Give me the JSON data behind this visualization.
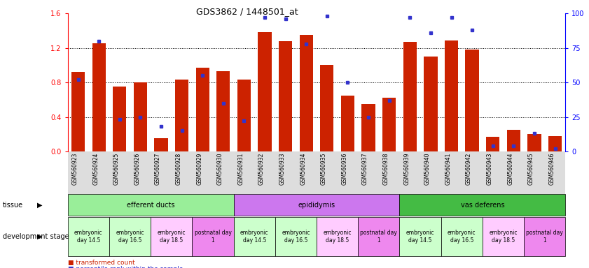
{
  "title": "GDS3862 / 1448501_at",
  "samples": [
    "GSM560923",
    "GSM560924",
    "GSM560925",
    "GSM560926",
    "GSM560927",
    "GSM560928",
    "GSM560929",
    "GSM560930",
    "GSM560931",
    "GSM560932",
    "GSM560933",
    "GSM560934",
    "GSM560935",
    "GSM560936",
    "GSM560937",
    "GSM560938",
    "GSM560939",
    "GSM560940",
    "GSM560941",
    "GSM560942",
    "GSM560943",
    "GSM560944",
    "GSM560945",
    "GSM560946"
  ],
  "transformed_count": [
    0.92,
    1.25,
    0.75,
    0.8,
    0.15,
    0.83,
    0.97,
    0.93,
    0.83,
    1.38,
    1.28,
    1.35,
    1.0,
    0.65,
    0.55,
    0.62,
    1.27,
    1.1,
    1.29,
    1.18,
    0.17,
    0.25,
    0.2,
    0.18
  ],
  "percentile_rank": [
    52,
    80,
    23,
    25,
    18,
    15,
    55,
    35,
    22,
    97,
    96,
    78,
    98,
    50,
    25,
    37,
    97,
    86,
    97,
    88,
    4,
    4,
    13,
    2
  ],
  "bar_color": "#cc2200",
  "dot_color": "#3333cc",
  "ylim_left": [
    0,
    1.6
  ],
  "ylim_right": [
    0,
    100
  ],
  "yticks_left": [
    0,
    0.4,
    0.8,
    1.2,
    1.6
  ],
  "yticks_right": [
    0,
    25,
    50,
    75,
    100
  ],
  "tissue_groups": [
    {
      "label": "efferent ducts",
      "start": 0,
      "end": 7,
      "color": "#99ee99"
    },
    {
      "label": "epididymis",
      "start": 8,
      "end": 15,
      "color": "#cc77ee"
    },
    {
      "label": "vas deferens",
      "start": 16,
      "end": 23,
      "color": "#44bb44"
    }
  ],
  "dev_stage_groups": [
    {
      "label": "embryonic\nday 14.5",
      "start": 0,
      "end": 1,
      "color": "#ccffcc"
    },
    {
      "label": "embryonic\nday 16.5",
      "start": 2,
      "end": 3,
      "color": "#ccffcc"
    },
    {
      "label": "embryonic\nday 18.5",
      "start": 4,
      "end": 5,
      "color": "#ffccff"
    },
    {
      "label": "postnatal day\n1",
      "start": 6,
      "end": 7,
      "color": "#ee88ee"
    },
    {
      "label": "embryonic\nday 14.5",
      "start": 8,
      "end": 9,
      "color": "#ccffcc"
    },
    {
      "label": "embryonic\nday 16.5",
      "start": 10,
      "end": 11,
      "color": "#ccffcc"
    },
    {
      "label": "embryonic\nday 18.5",
      "start": 12,
      "end": 13,
      "color": "#ffccff"
    },
    {
      "label": "postnatal day\n1",
      "start": 14,
      "end": 15,
      "color": "#ee88ee"
    },
    {
      "label": "embryonic\nday 14.5",
      "start": 16,
      "end": 17,
      "color": "#ccffcc"
    },
    {
      "label": "embryonic\nday 16.5",
      "start": 18,
      "end": 19,
      "color": "#ccffcc"
    },
    {
      "label": "embryonic\nday 18.5",
      "start": 20,
      "end": 21,
      "color": "#ffccff"
    },
    {
      "label": "postnatal day\n1",
      "start": 22,
      "end": 23,
      "color": "#ee88ee"
    }
  ],
  "xlabel_tissue": "tissue",
  "xlabel_devstage": "development stage",
  "bg_color": "#ffffff",
  "xtick_area_color": "#dddddd"
}
